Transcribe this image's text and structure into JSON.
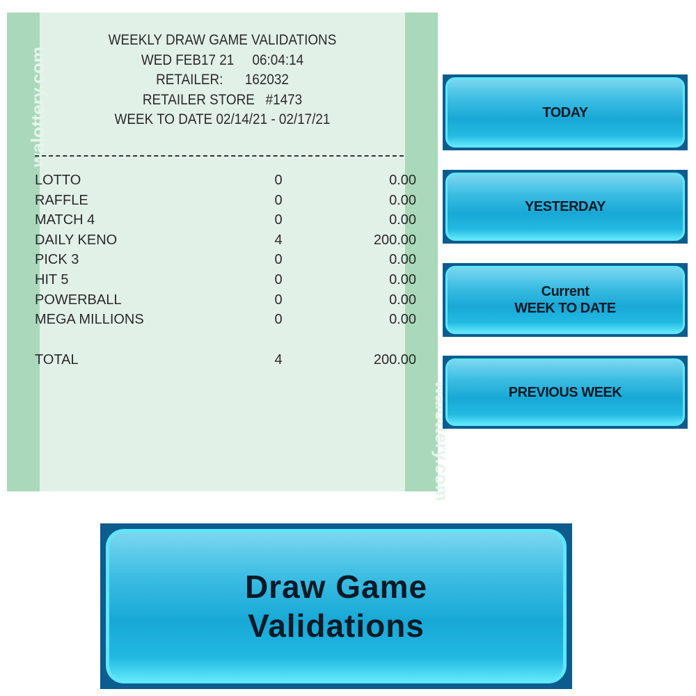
{
  "receipt": {
    "watermark": "walottery.com",
    "header": [
      "WEEKLY DRAW GAME VALIDATIONS",
      "WED FEB17 21     06:04:14",
      "RETAILER:      162032",
      "RETAILER STORE   #1473",
      "WEEK TO DATE 02/14/21 - 02/17/21"
    ],
    "rows": [
      {
        "name": "LOTTO",
        "count": "0",
        "amount": "0.00"
      },
      {
        "name": "RAFFLE",
        "count": "0",
        "amount": "0.00"
      },
      {
        "name": "MATCH 4",
        "count": "0",
        "amount": "0.00"
      },
      {
        "name": "DAILY KENO",
        "count": "4",
        "amount": "200.00"
      },
      {
        "name": "PICK 3",
        "count": "0",
        "amount": "0.00"
      },
      {
        "name": "HIT 5",
        "count": "0",
        "amount": "0.00"
      },
      {
        "name": "POWERBALL",
        "count": "0",
        "amount": "0.00"
      },
      {
        "name": "MEGA MILLIONS",
        "count": "0",
        "amount": "0.00"
      }
    ],
    "total": {
      "name": "TOTAL",
      "count": "4",
      "amount": "200.00"
    }
  },
  "buttons": {
    "today": "TODAY",
    "yesterday": "YESTERDAY",
    "current_line1": "Current",
    "current_line2": "WEEK TO DATE",
    "previous_week": "PREVIOUS WEEK",
    "main_line1": "Draw Game",
    "main_line2": "Validations"
  },
  "colors": {
    "receipt_bg": "#e2f1e7",
    "receipt_band": "#a9d9ba",
    "button": "#18a8d6",
    "button_border": "#0c5c8e"
  }
}
